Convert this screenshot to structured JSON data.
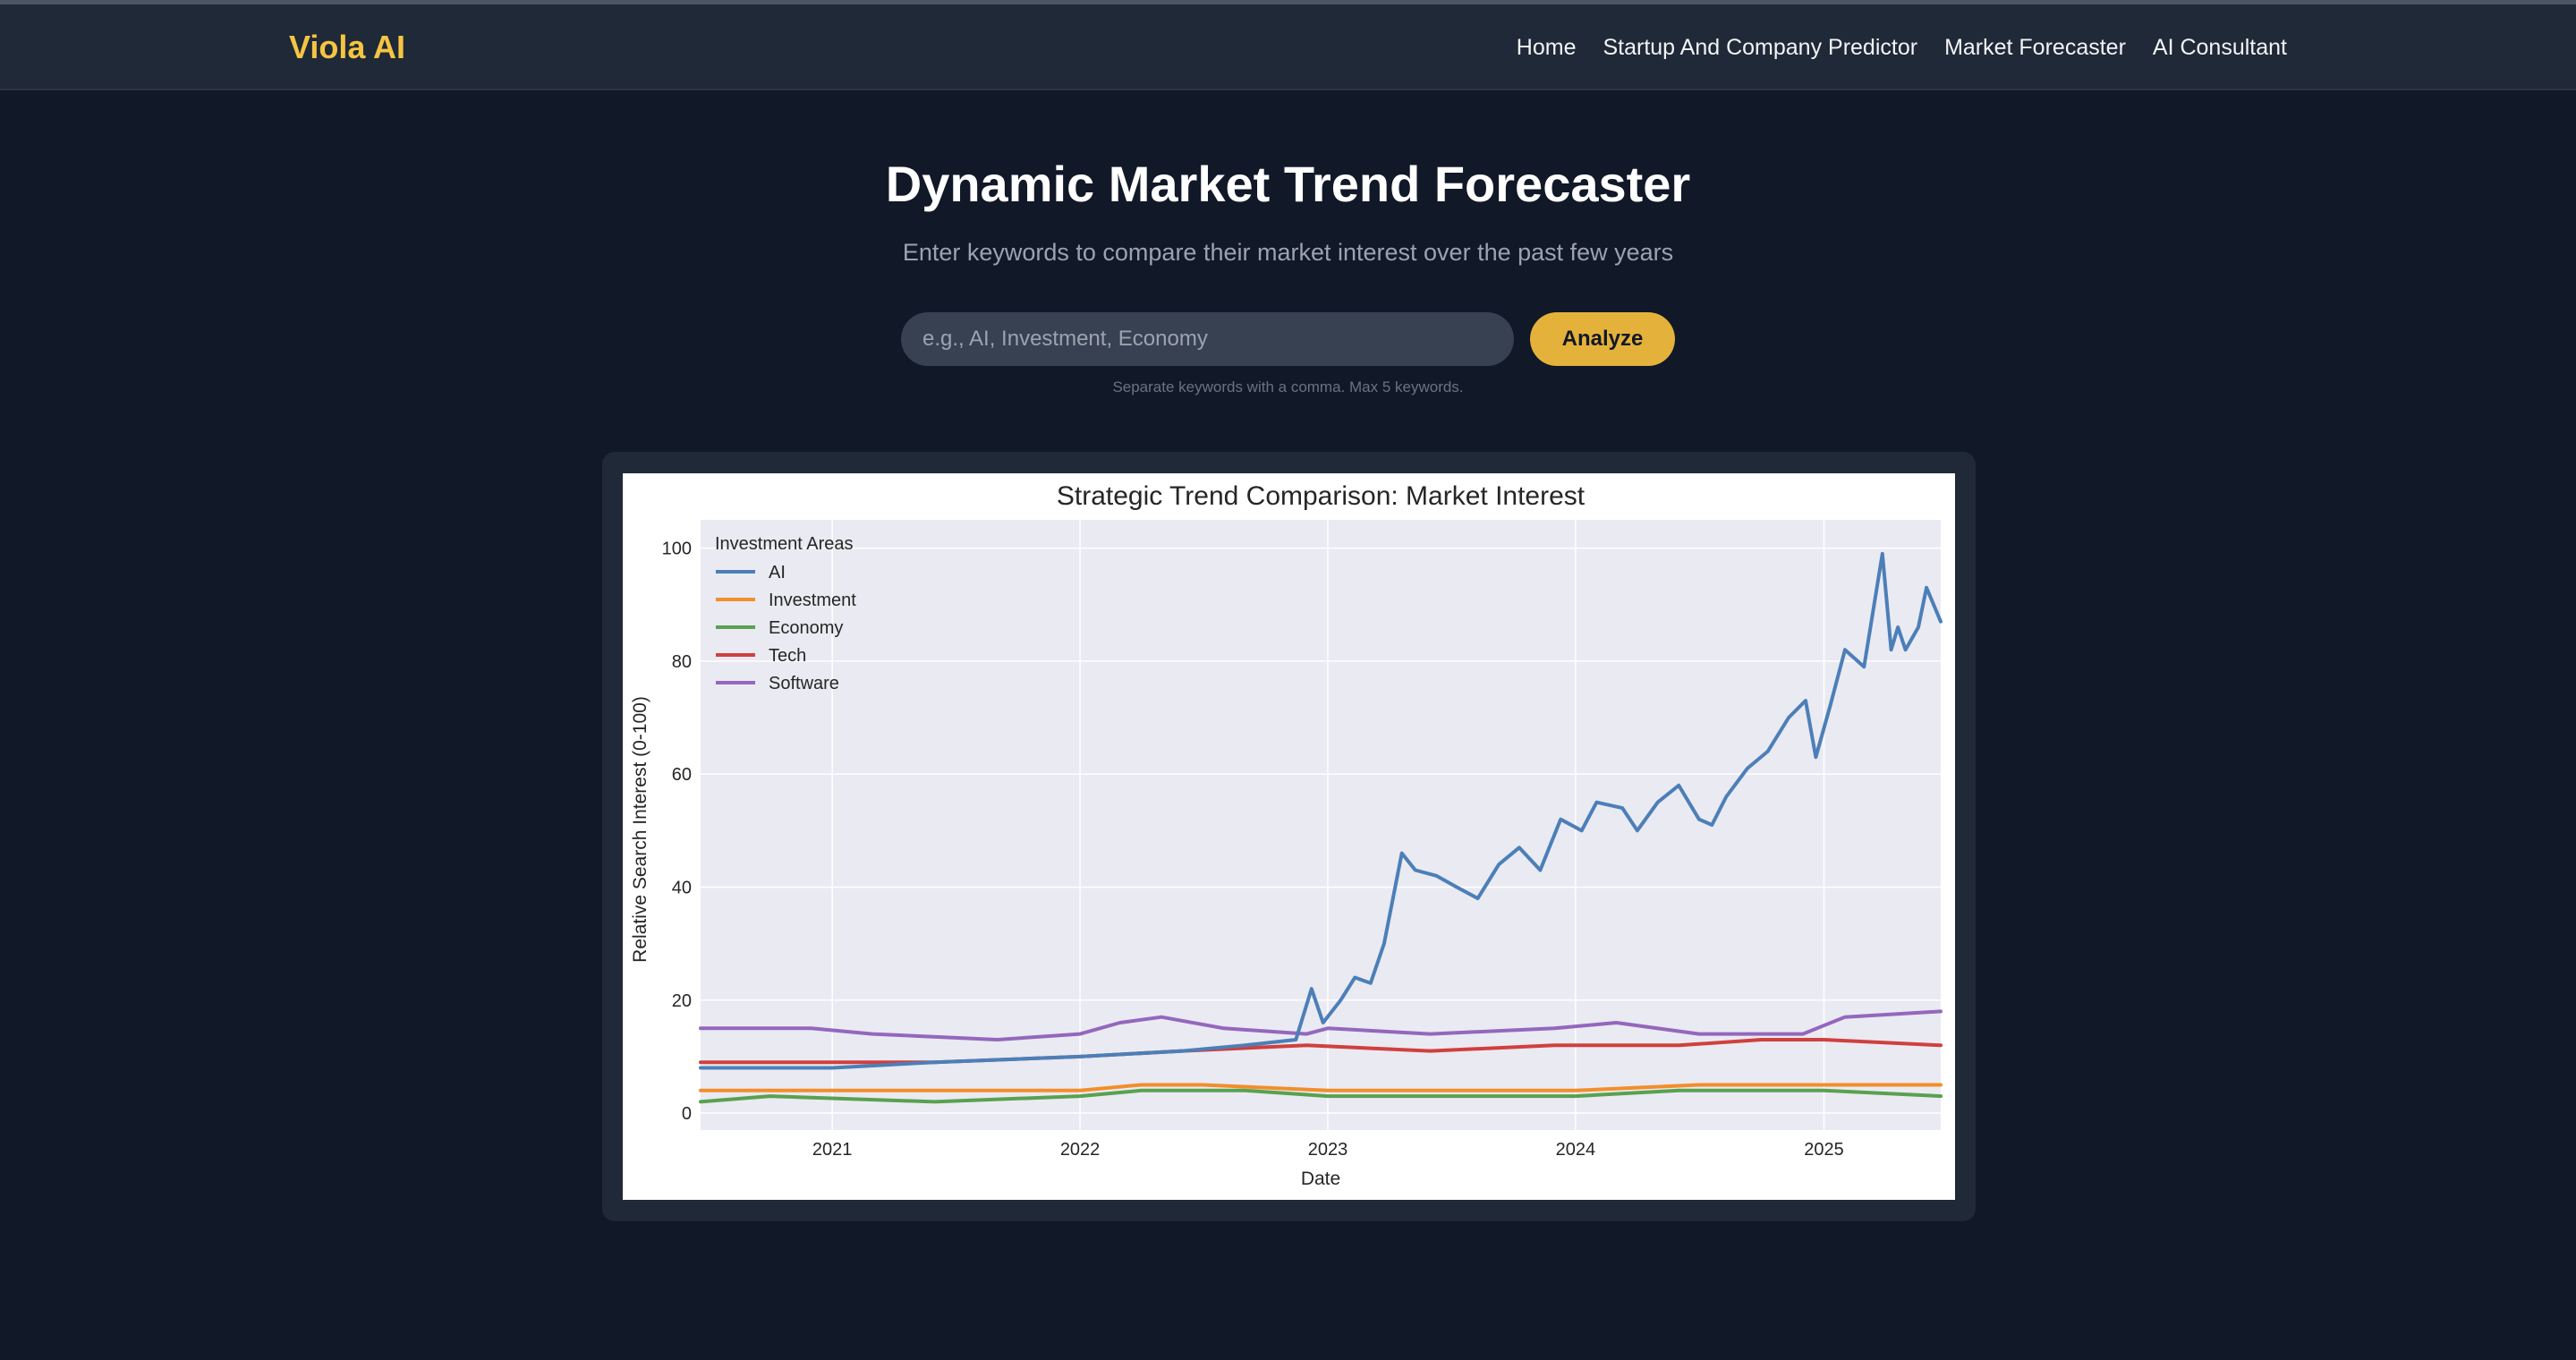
{
  "brand": "Viola AI",
  "nav": {
    "home": "Home",
    "predictor": "Startup And Company Predictor",
    "forecaster": "Market Forecaster",
    "consultant": "AI Consultant"
  },
  "page": {
    "title": "Dynamic Market Trend Forecaster",
    "subtitle": "Enter keywords to compare their market interest over the past few years",
    "hint": "Separate keywords with a comma. Max 5 keywords."
  },
  "search": {
    "placeholder": "e.g., AI, Investment, Economy",
    "value": "",
    "button_label": "Analyze"
  },
  "colors": {
    "brand": "#f5c542",
    "button": "#e4b23b",
    "background": "#111827",
    "panel": "#1f2937"
  },
  "chart_data": {
    "type": "line",
    "title": "Strategic Trend Comparison: Market Interest",
    "xlabel": "Date",
    "ylabel": "Relative Search Interest (0-100)",
    "xlim": [
      "2020-06-21",
      "2025-06-22"
    ],
    "ylim": [
      -3,
      105
    ],
    "x_ticks": [
      "2021",
      "2022",
      "2023",
      "2024",
      "2025"
    ],
    "y_ticks": [
      0,
      20,
      40,
      60,
      80,
      100
    ],
    "grid": true,
    "legend_title": "Investment Areas",
    "legend_position": "top-left",
    "series": [
      {
        "name": "AI",
        "color": "#4c7fb8",
        "points": [
          [
            "2020-06-21",
            8
          ],
          [
            "2021-01-01",
            8
          ],
          [
            "2021-06-01",
            9
          ],
          [
            "2022-01-01",
            10
          ],
          [
            "2022-06-01",
            11
          ],
          [
            "2022-09-01",
            12
          ],
          [
            "2022-11-15",
            13
          ],
          [
            "2022-12-08",
            22
          ],
          [
            "2022-12-25",
            16
          ],
          [
            "2023-01-20",
            20
          ],
          [
            "2023-02-10",
            24
          ],
          [
            "2023-03-05",
            23
          ],
          [
            "2023-03-25",
            30
          ],
          [
            "2023-04-20",
            46
          ],
          [
            "2023-05-10",
            43
          ],
          [
            "2023-06-10",
            42
          ],
          [
            "2023-07-10",
            40
          ],
          [
            "2023-08-10",
            38
          ],
          [
            "2023-09-10",
            44
          ],
          [
            "2023-10-10",
            47
          ],
          [
            "2023-11-10",
            43
          ],
          [
            "2023-12-10",
            52
          ],
          [
            "2024-01-10",
            50
          ],
          [
            "2024-02-01",
            55
          ],
          [
            "2024-03-10",
            54
          ],
          [
            "2024-04-01",
            50
          ],
          [
            "2024-05-01",
            55
          ],
          [
            "2024-06-01",
            58
          ],
          [
            "2024-07-01",
            52
          ],
          [
            "2024-07-20",
            51
          ],
          [
            "2024-08-10",
            56
          ],
          [
            "2024-09-10",
            61
          ],
          [
            "2024-10-10",
            64
          ],
          [
            "2024-11-10",
            70
          ],
          [
            "2024-12-05",
            73
          ],
          [
            "2024-12-20",
            63
          ],
          [
            "2025-01-10",
            72
          ],
          [
            "2025-02-01",
            82
          ],
          [
            "2025-03-01",
            79
          ],
          [
            "2025-03-28",
            99
          ],
          [
            "2025-04-10",
            82
          ],
          [
            "2025-04-20",
            86
          ],
          [
            "2025-05-01",
            82
          ],
          [
            "2025-05-20",
            86
          ],
          [
            "2025-06-01",
            93
          ],
          [
            "2025-06-22",
            87
          ]
        ]
      },
      {
        "name": "Investment",
        "color": "#f28e2b",
        "points": [
          [
            "2020-06-21",
            4
          ],
          [
            "2021-01-01",
            4
          ],
          [
            "2021-07-01",
            4
          ],
          [
            "2022-01-01",
            4
          ],
          [
            "2022-04-01",
            5
          ],
          [
            "2022-07-01",
            5
          ],
          [
            "2023-01-01",
            4
          ],
          [
            "2023-07-01",
            4
          ],
          [
            "2024-01-01",
            4
          ],
          [
            "2024-07-01",
            5
          ],
          [
            "2024-10-01",
            5
          ],
          [
            "2025-01-01",
            5
          ],
          [
            "2025-06-22",
            5
          ]
        ]
      },
      {
        "name": "Economy",
        "color": "#59a14f",
        "points": [
          [
            "2020-06-21",
            2
          ],
          [
            "2020-10-01",
            3
          ],
          [
            "2021-06-01",
            2
          ],
          [
            "2022-01-01",
            3
          ],
          [
            "2022-04-01",
            4
          ],
          [
            "2022-09-01",
            4
          ],
          [
            "2023-01-01",
            3
          ],
          [
            "2023-06-01",
            3
          ],
          [
            "2024-01-01",
            3
          ],
          [
            "2024-06-01",
            4
          ],
          [
            "2025-01-01",
            4
          ],
          [
            "2025-06-22",
            3
          ]
        ]
      },
      {
        "name": "Tech",
        "color": "#d0403e",
        "points": [
          [
            "2020-06-21",
            9
          ],
          [
            "2021-01-01",
            9
          ],
          [
            "2021-06-01",
            9
          ],
          [
            "2022-01-01",
            10
          ],
          [
            "2022-06-01",
            11
          ],
          [
            "2022-12-01",
            12
          ],
          [
            "2023-06-01",
            11
          ],
          [
            "2023-12-01",
            12
          ],
          [
            "2024-06-01",
            12
          ],
          [
            "2024-10-01",
            13
          ],
          [
            "2025-01-01",
            13
          ],
          [
            "2025-06-22",
            12
          ]
        ]
      },
      {
        "name": "Software",
        "color": "#9467bd",
        "points": [
          [
            "2020-06-21",
            15
          ],
          [
            "2020-12-01",
            15
          ],
          [
            "2021-03-01",
            14
          ],
          [
            "2021-09-01",
            13
          ],
          [
            "2022-01-01",
            14
          ],
          [
            "2022-03-01",
            16
          ],
          [
            "2022-05-01",
            17
          ],
          [
            "2022-08-01",
            15
          ],
          [
            "2022-12-01",
            14
          ],
          [
            "2023-01-01",
            15
          ],
          [
            "2023-06-01",
            14
          ],
          [
            "2023-12-01",
            15
          ],
          [
            "2024-03-01",
            16
          ],
          [
            "2024-07-01",
            14
          ],
          [
            "2024-12-01",
            14
          ],
          [
            "2025-02-01",
            17
          ],
          [
            "2025-06-22",
            18
          ]
        ]
      }
    ]
  }
}
